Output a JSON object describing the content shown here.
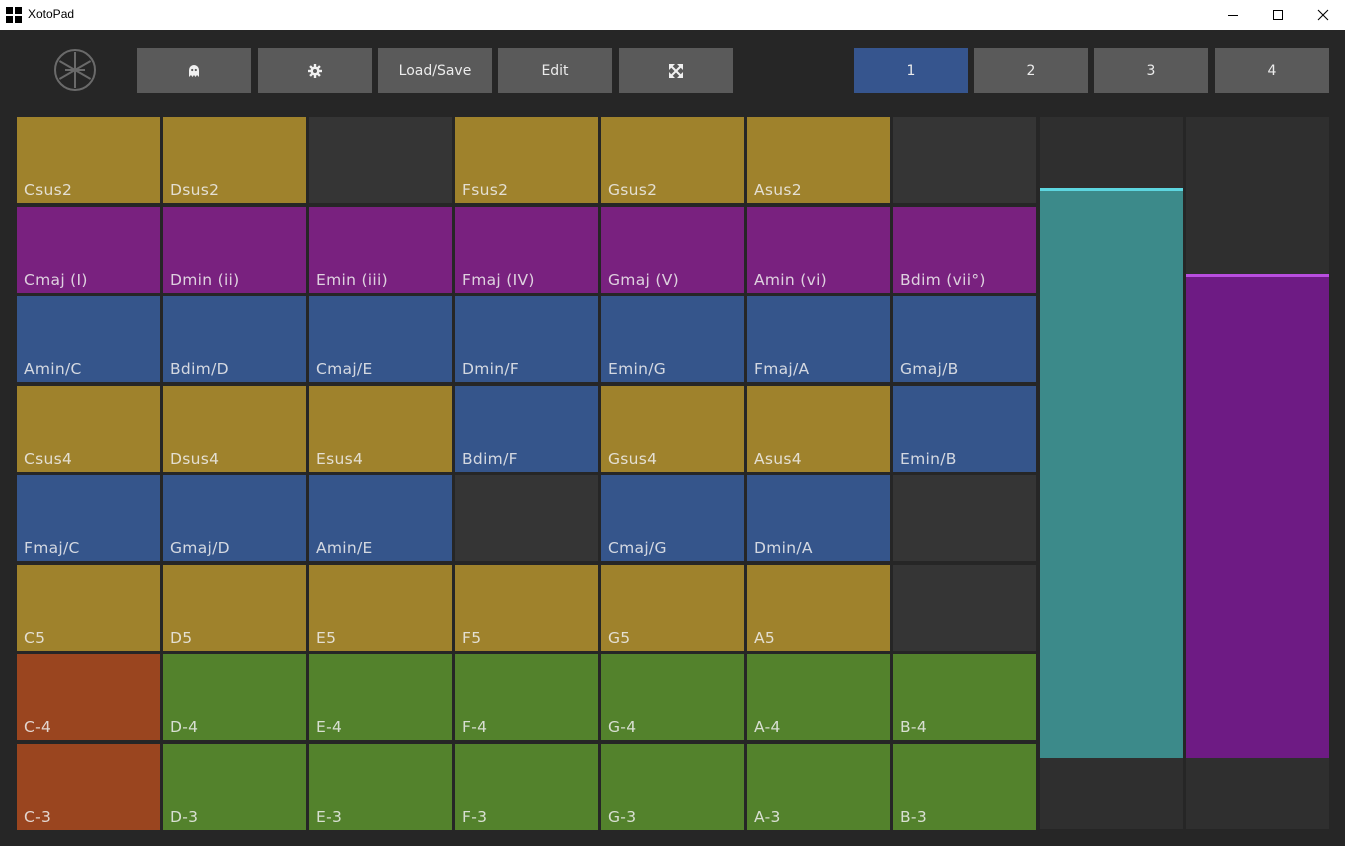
{
  "window": {
    "title": "XotoPad"
  },
  "toolbar": {
    "buttons": [
      {
        "icon": "ghost-icon"
      },
      {
        "icon": "gear-icon"
      },
      {
        "label": "Load/Save"
      },
      {
        "label": "Edit"
      },
      {
        "icon": "fullscreen-icon"
      }
    ],
    "pages": [
      "1",
      "2",
      "3",
      "4"
    ],
    "active_page": "1"
  },
  "colors": {
    "yellow": "#9f822c",
    "purple": "#79217f",
    "blue": "#35558b",
    "empty": "#353535",
    "orange": "#9a451f",
    "green": "#53822c",
    "teal": "#3c8a8a",
    "teal_line": "#5dd6e0",
    "violet": "#6e1b84",
    "violet_line": "#b94ee0",
    "page_active": "#36558e"
  },
  "grid": [
    [
      [
        "Csus2",
        "yellow"
      ],
      [
        "Dsus2",
        "yellow"
      ],
      [
        "",
        "empty"
      ],
      [
        "Fsus2",
        "yellow"
      ],
      [
        "Gsus2",
        "yellow"
      ],
      [
        "Asus2",
        "yellow"
      ],
      [
        "",
        "empty"
      ]
    ],
    [
      [
        "Cmaj (I)",
        "purple"
      ],
      [
        "Dmin (ii)",
        "purple"
      ],
      [
        "Emin (iii)",
        "purple"
      ],
      [
        "Fmaj (IV)",
        "purple"
      ],
      [
        "Gmaj (V)",
        "purple"
      ],
      [
        "Amin (vi)",
        "purple"
      ],
      [
        "Bdim (vii°)",
        "purple"
      ]
    ],
    [
      [
        "Amin/C",
        "blue"
      ],
      [
        "Bdim/D",
        "blue"
      ],
      [
        "Cmaj/E",
        "blue"
      ],
      [
        "Dmin/F",
        "blue"
      ],
      [
        "Emin/G",
        "blue"
      ],
      [
        "Fmaj/A",
        "blue"
      ],
      [
        "Gmaj/B",
        "blue"
      ]
    ],
    [
      [
        "Csus4",
        "yellow"
      ],
      [
        "Dsus4",
        "yellow"
      ],
      [
        "Esus4",
        "yellow"
      ],
      [
        "Bdim/F",
        "blue"
      ],
      [
        "Gsus4",
        "yellow"
      ],
      [
        "Asus4",
        "yellow"
      ],
      [
        "Emin/B",
        "blue"
      ]
    ],
    [
      [
        "Fmaj/C",
        "blue"
      ],
      [
        "Gmaj/D",
        "blue"
      ],
      [
        "Amin/E",
        "blue"
      ],
      [
        "",
        "empty"
      ],
      [
        "Cmaj/G",
        "blue"
      ],
      [
        "Dmin/A",
        "blue"
      ],
      [
        "",
        "empty"
      ]
    ],
    [
      [
        "C5",
        "yellow"
      ],
      [
        "D5",
        "yellow"
      ],
      [
        "E5",
        "yellow"
      ],
      [
        "F5",
        "yellow"
      ],
      [
        "G5",
        "yellow"
      ],
      [
        "A5",
        "yellow"
      ],
      [
        "",
        "empty"
      ]
    ],
    [
      [
        "C-4",
        "orange"
      ],
      [
        "D-4",
        "green"
      ],
      [
        "E-4",
        "green"
      ],
      [
        "F-4",
        "green"
      ],
      [
        "G-4",
        "green"
      ],
      [
        "A-4",
        "green"
      ],
      [
        "B-4",
        "green"
      ]
    ],
    [
      [
        "C-3",
        "orange"
      ],
      [
        "D-3",
        "green"
      ],
      [
        "E-3",
        "green"
      ],
      [
        "F-3",
        "green"
      ],
      [
        "G-3",
        "green"
      ],
      [
        "A-3",
        "green"
      ],
      [
        "B-3",
        "green"
      ]
    ]
  ],
  "sliders": [
    {
      "color": "teal",
      "line": "teal_line",
      "top_fraction": 0.9,
      "bottom_fraction": 0.1
    },
    {
      "color": "violet",
      "line": "violet_line",
      "top_fraction": 0.78,
      "bottom_fraction": 0.1
    }
  ]
}
